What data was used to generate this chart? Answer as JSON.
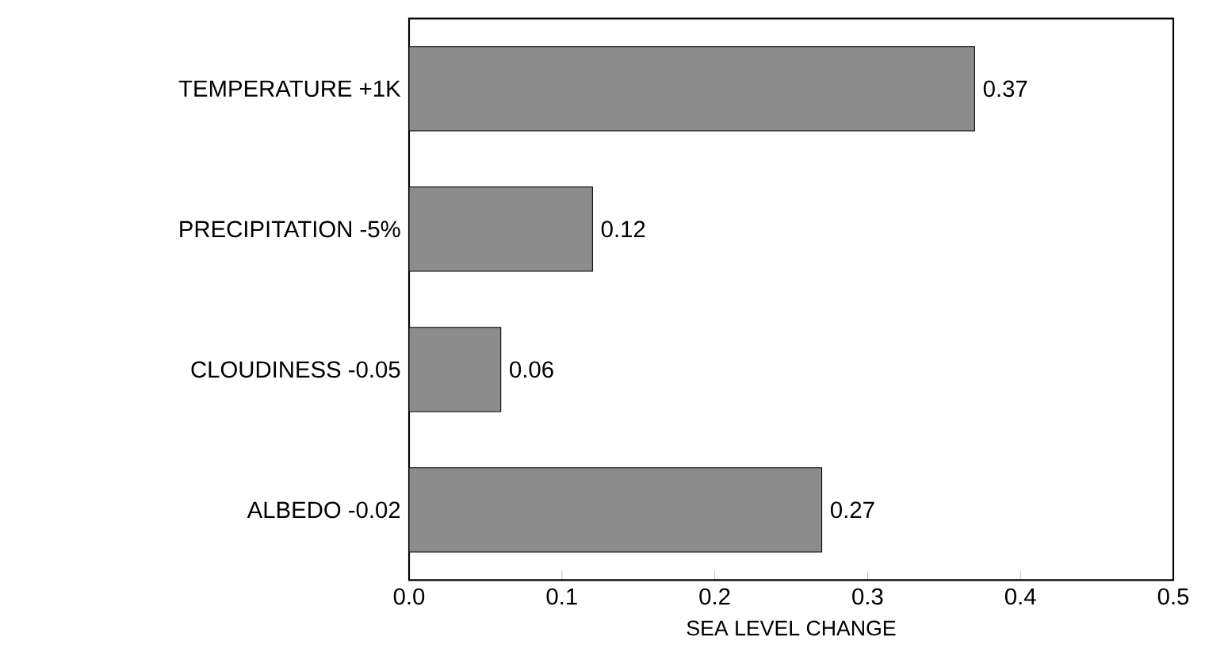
{
  "chart_data": {
    "type": "bar",
    "orientation": "horizontal",
    "xlabel": "SEA LEVEL CHANGE",
    "categories": [
      "TEMPERATURE +1K",
      "PRECIPITATION -5%",
      "CLOUDINESS -0.05",
      "ALBEDO -0.02"
    ],
    "values": [
      0.37,
      0.12,
      0.06,
      0.27
    ],
    "color": "#8c8c8c",
    "data_labels": true,
    "xlim": [
      0,
      0.5
    ],
    "xticks": [
      {
        "value": 0,
        "label": "0.0"
      },
      {
        "value": 0.1,
        "label": "0.1"
      },
      {
        "value": 0.2,
        "label": "0.2"
      },
      {
        "value": 0.3,
        "label": "0.3"
      },
      {
        "value": 0.4,
        "label": "0.4"
      },
      {
        "value": 0.5,
        "label": "0.5"
      }
    ]
  }
}
